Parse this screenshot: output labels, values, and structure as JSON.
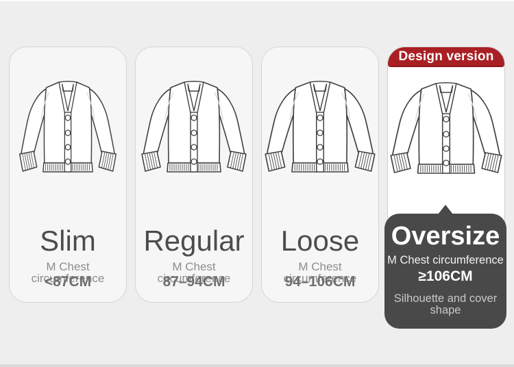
{
  "columns": [
    {
      "name": "Slim",
      "chest_label": "M Chest circumference",
      "chest_value": "<87CM"
    },
    {
      "name": "Regular",
      "chest_label": "M Chest circumference",
      "chest_value": "87–94CM"
    },
    {
      "name": "Loose",
      "chest_label": "M Chest circumference",
      "chest_value": "94–106CM"
    },
    {
      "name": "Oversize",
      "chest_label": "M Chest circumference",
      "chest_value": "≥106CM",
      "banner_label": "Design version",
      "note": "Silhouette and cover shape",
      "highlighted": true
    }
  ],
  "icons": {
    "cardigan": "cardigan-line-drawing"
  },
  "colors": {
    "page_bg": "#efeeee",
    "card_bg": "#f7f6f6",
    "card_border": "#d6d5d5",
    "highlight_card_bg": "#ffffff",
    "banner_red": "#a92024",
    "callout_dark": "#4a494a",
    "title_text": "#4c4c4c",
    "label_text": "#8e8d8d",
    "value_text": "#6f6e6e",
    "note_text": "#c9c8c8"
  }
}
